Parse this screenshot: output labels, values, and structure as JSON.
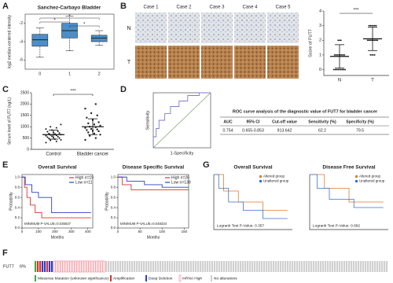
{
  "panels": {
    "A": {
      "label": "A",
      "title": "Sanchez-Carbayo Bladder",
      "y_label": "log2 median-centered intensity",
      "categories": [
        "0",
        "1",
        "2"
      ],
      "ylim": [
        -7,
        -1
      ],
      "yticks": [
        -6,
        -4,
        -2
      ],
      "boxes": [
        {
          "min": -5.7,
          "q1": -4.5,
          "median": -3.8,
          "q3": -3.2,
          "max": -2.5
        },
        {
          "min": -5.0,
          "q1": -3.6,
          "median": -2.8,
          "q3": -2.0,
          "max": -1.2
        },
        {
          "min": -4.4,
          "q1": -4.0,
          "median": -3.6,
          "q3": -3.3,
          "max": -2.8
        }
      ],
      "significance": [
        "*",
        "*",
        "*"
      ],
      "color": "#4a8fc9"
    },
    "B": {
      "label": "B",
      "cases": [
        "Case 1",
        "Case 2",
        "Case 3",
        "Case 4",
        "Case 5"
      ],
      "rows": [
        "N",
        "T"
      ],
      "y_label": "Score of FUT7",
      "categories": [
        "N",
        "T"
      ],
      "ylim": [
        -0.4,
        4
      ],
      "yticks": [
        0,
        1,
        2,
        3,
        4
      ],
      "groups": [
        {
          "values": [
            0,
            0,
            0,
            0,
            0,
            0,
            0,
            0,
            0,
            1,
            1,
            1,
            1,
            1,
            1,
            1,
            1,
            2,
            2,
            2
          ],
          "mean": 0.9,
          "sd": 0.8
        },
        {
          "values": [
            1,
            1,
            1,
            1,
            2,
            2,
            2,
            2,
            2,
            2,
            2,
            2,
            3,
            3,
            3,
            3,
            3,
            3
          ],
          "mean": 2.1,
          "sd": 0.8
        }
      ],
      "significance": "***"
    },
    "C": {
      "label": "C",
      "y_label": "Serum level of FUT7 (ng/L)",
      "categories": [
        "Control",
        "Bladder cancer"
      ],
      "ylim": [
        0,
        2500
      ],
      "yticks": [
        0,
        500,
        1000,
        1500,
        2000,
        2500
      ],
      "groups": [
        {
          "values": [
            300,
            350,
            400,
            420,
            450,
            480,
            500,
            520,
            540,
            560,
            580,
            600,
            620,
            640,
            650,
            680,
            700,
            720,
            750,
            780,
            800,
            850,
            900,
            950,
            1000,
            1100
          ],
          "mean": 650,
          "sd": 200
        },
        {
          "values": [
            420,
            500,
            600,
            650,
            700,
            750,
            800,
            820,
            850,
            880,
            900,
            950,
            980,
            1000,
            1050,
            1100,
            1150,
            1200,
            1300,
            1400,
            1500,
            1600,
            1800,
            2000
          ],
          "mean": 1000,
          "sd": 350
        }
      ],
      "significance": "***"
    },
    "D": {
      "label": "D",
      "x_label": "1-Specificity",
      "y_label": "Sensitivity",
      "roc": {
        "x": [
          0,
          0,
          0.05,
          0.05,
          0.1,
          0.1,
          0.2,
          0.2,
          0.3,
          0.3,
          0.45,
          0.45,
          0.6,
          0.6,
          0.8,
          0.8,
          1
        ],
        "y": [
          0,
          0.2,
          0.2,
          0.35,
          0.35,
          0.5,
          0.5,
          0.62,
          0.62,
          0.75,
          0.75,
          0.85,
          0.85,
          0.95,
          0.95,
          1,
          1
        ]
      },
      "table_title": "ROC curve analysis of the diagnostic value of FUT7 for bladder cancer",
      "headers": [
        "AUC",
        "95% CI",
        "Cut-off value",
        "Sensitivity (%)",
        "Specificity (%)"
      ],
      "row": [
        0.754,
        "0.655-0.853",
        913.642,
        62.2,
        79.5
      ]
    },
    "E": {
      "label": "E",
      "x_label": "Months",
      "y_label": "Probability",
      "yticks": [
        {
          "value": 0,
          "label": "0.0"
        },
        0.2,
        0.4,
        0.6,
        0.8,
        {
          "value": 1,
          "label": "1.0"
        }
      ],
      "plots": [
        {
          "title": "Overall Survival",
          "xlim": [
            0,
            430
          ],
          "xticks": [
            0,
            100,
            200,
            300,
            400
          ],
          "p_value": "MINIMUM P-VALUE=0.035637",
          "series": [
            {
              "name": "High n=19",
              "color": "#e0322f",
              "x": [
                0,
                15,
                15,
                30,
                30,
                50,
                50,
                80,
                80,
                120,
                120,
                420
              ],
              "y": [
                1,
                1,
                0.8,
                0.8,
                0.6,
                0.6,
                0.45,
                0.45,
                0.3,
                0.3,
                0.2,
                0.2
              ]
            },
            {
              "name": "Low n=11",
              "color": "#2d3fc9",
              "x": [
                0,
                20,
                20,
                60,
                60,
                100,
                100,
                180,
                180,
                420
              ],
              "y": [
                1,
                1,
                0.85,
                0.85,
                0.7,
                0.7,
                0.6,
                0.6,
                0.3,
                0.3
              ]
            }
          ]
        },
        {
          "title": "Disease Specific Survival",
          "xlim": [
            0,
            160
          ],
          "xticks": [
            0,
            50,
            100,
            150
          ],
          "p_value": "MINIMUM P-VALUE=0.048334",
          "series": [
            {
              "name": "High n=26",
              "color": "#e0322f",
              "x": [
                0,
                10,
                10,
                30,
                30,
                160
              ],
              "y": [
                1,
                1,
                0.85,
                0.85,
                0.75,
                0.75
              ]
            },
            {
              "name": "Low n=139",
              "color": "#2d3fc9",
              "x": [
                0,
                20,
                20,
                60,
                60,
                100,
                100,
                160
              ],
              "y": [
                1,
                1,
                0.92,
                0.92,
                0.85,
                0.85,
                0.8,
                0.8
              ]
            }
          ]
        }
      ]
    },
    "G": {
      "label": "G",
      "legend": [
        "Altered group",
        "Unaltered group"
      ],
      "colors": [
        "#e07a2f",
        "#3a6fd1"
      ],
      "plots": [
        {
          "title": "Overall Survival",
          "xlim": [
            0,
            160
          ],
          "p_value": "Logrank Test P-Value: 0.357",
          "series": [
            {
              "x": [
                0,
                20,
                20,
                50,
                50,
                100,
                100,
                150
              ],
              "y": [
                1,
                1,
                0.7,
                0.7,
                0.5,
                0.5,
                0.35,
                0.35
              ]
            },
            {
              "x": [
                0,
                10,
                10,
                30,
                30,
                60,
                60,
                100,
                100,
                150
              ],
              "y": [
                1,
                1,
                0.75,
                0.75,
                0.5,
                0.5,
                0.35,
                0.35,
                0.2,
                0.2
              ]
            }
          ]
        },
        {
          "title": "Disease Free Survival",
          "xlim": [
            0,
            160
          ],
          "p_value": "Logrank Test P-Value: 0.682",
          "series": [
            {
              "x": [
                0,
                30,
                30,
                80,
                80,
                150
              ],
              "y": [
                1,
                1,
                0.75,
                0.75,
                0.5,
                0.5
              ]
            },
            {
              "x": [
                0,
                15,
                15,
                40,
                40,
                90,
                90,
                150
              ],
              "y": [
                1,
                1,
                0.75,
                0.75,
                0.55,
                0.55,
                0.4,
                0.4
              ]
            }
          ]
        }
      ]
    },
    "F": {
      "label": "F",
      "gene": "FUT7",
      "percent": "6%",
      "legend": [
        "Missense Mutation (unknown significance)",
        "Amplification",
        "Deep Deletion",
        "mRNA High",
        "No alterations"
      ]
    }
  }
}
